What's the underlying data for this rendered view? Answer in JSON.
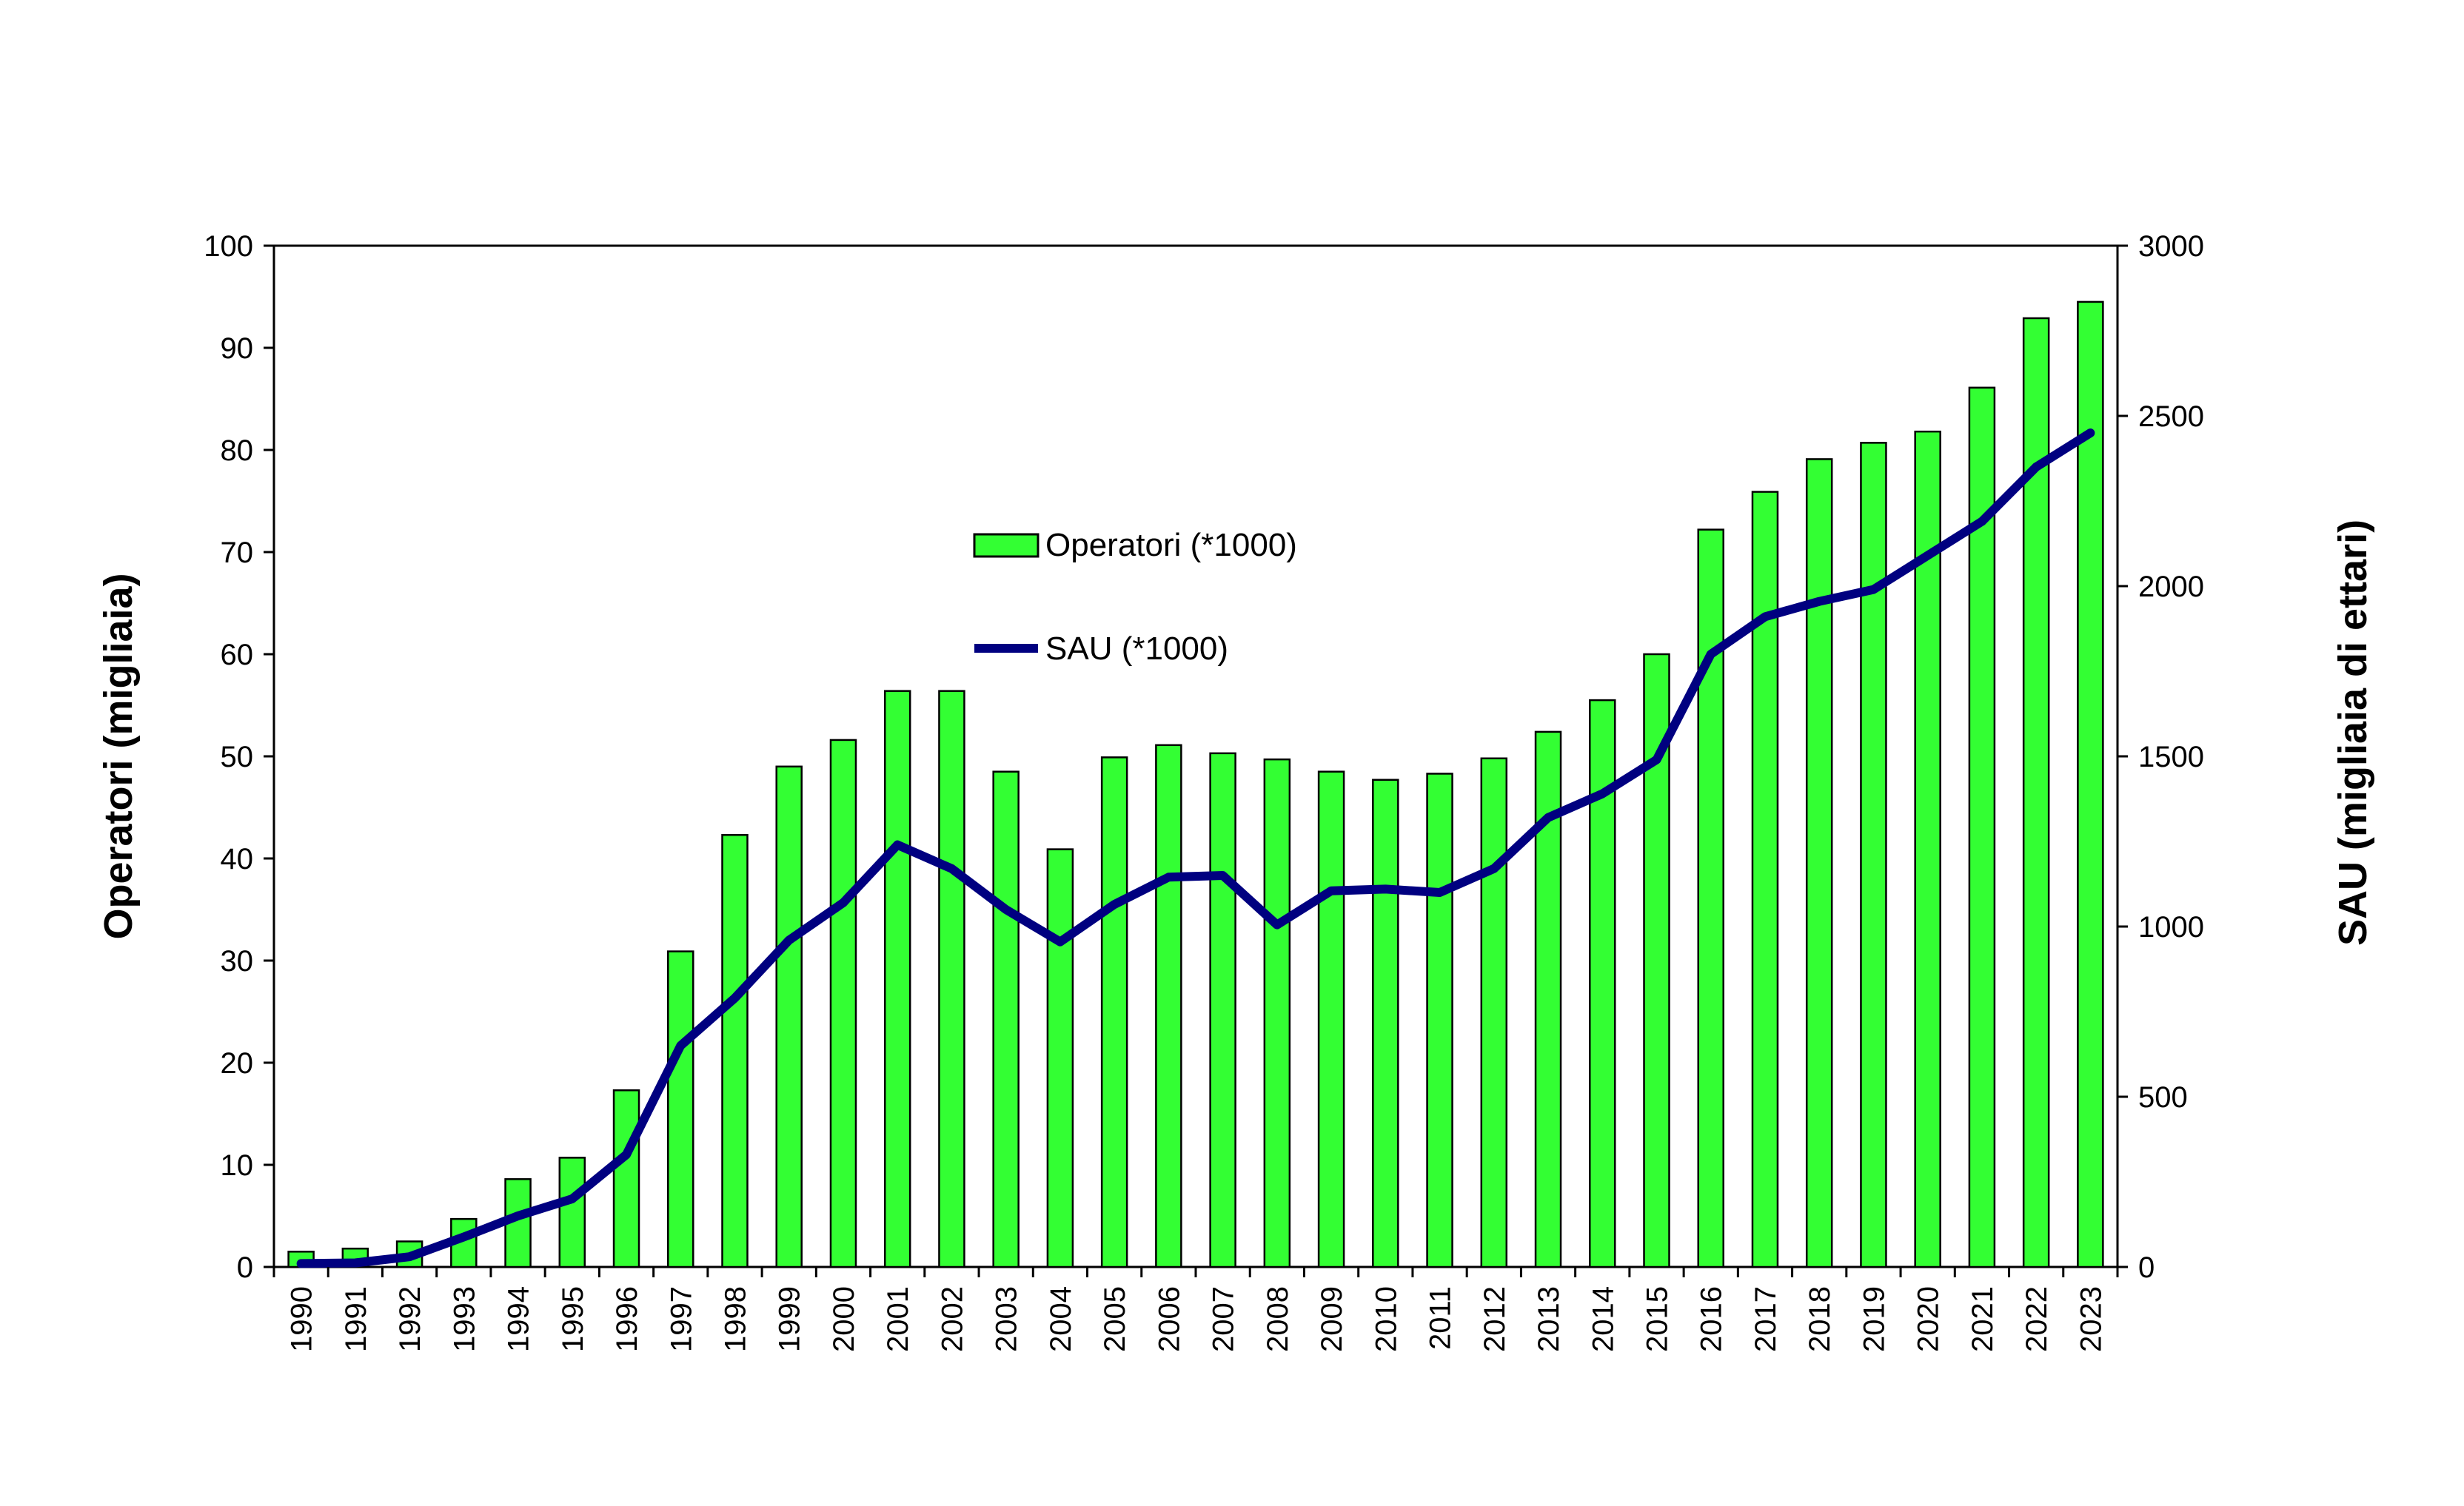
{
  "chart_data": {
    "type": "bar",
    "categories": [
      "1990",
      "1991",
      "1992",
      "1993",
      "1994",
      "1995",
      "1996",
      "1997",
      "1998",
      "1999",
      "2000",
      "2001",
      "2002",
      "2003",
      "2004",
      "2005",
      "2006",
      "2007",
      "2008",
      "2009",
      "2010",
      "2011",
      "2012",
      "2013",
      "2014",
      "2015",
      "2016",
      "2017",
      "2018",
      "2019",
      "2020",
      "2021",
      "2022",
      "2023"
    ],
    "series": [
      {
        "name": "Operatori (*1000)",
        "type": "bar",
        "axis": "left",
        "color": "#33ff33",
        "values": [
          1.5,
          1.8,
          2.5,
          4.7,
          8.6,
          10.7,
          17.3,
          30.9,
          42.3,
          49.0,
          51.6,
          56.4,
          56.4,
          48.5,
          40.9,
          49.9,
          51.1,
          50.3,
          49.7,
          48.5,
          47.7,
          48.3,
          49.8,
          52.4,
          55.5,
          60.0,
          72.2,
          75.9,
          79.1,
          80.7,
          81.8,
          86.1,
          92.9,
          94.5
        ]
      },
      {
        "name": "SAU (*1000)",
        "type": "line",
        "axis": "right",
        "color": "#000080",
        "values": [
          10,
          12,
          30,
          88,
          150,
          200,
          330,
          650,
          790,
          960,
          1070,
          1240,
          1170,
          1050,
          955,
          1065,
          1145,
          1150,
          1005,
          1105,
          1110,
          1100,
          1170,
          1320,
          1390,
          1490,
          1800,
          1910,
          1955,
          1990,
          2090,
          2190,
          2350,
          2450
        ]
      }
    ],
    "ylabel": "Operatori (migliaia)",
    "ylabel_right": "SAU (migliaia di ettari)",
    "ylim": [
      0,
      100
    ],
    "ylim_right": [
      0,
      3000
    ],
    "yticks": [
      0,
      10,
      20,
      30,
      40,
      50,
      60,
      70,
      80,
      90,
      100
    ],
    "yticks_right": [
      0,
      500,
      1000,
      1500,
      2000,
      2500,
      3000
    ],
    "grid": false,
    "legend_position": "inside-center"
  }
}
